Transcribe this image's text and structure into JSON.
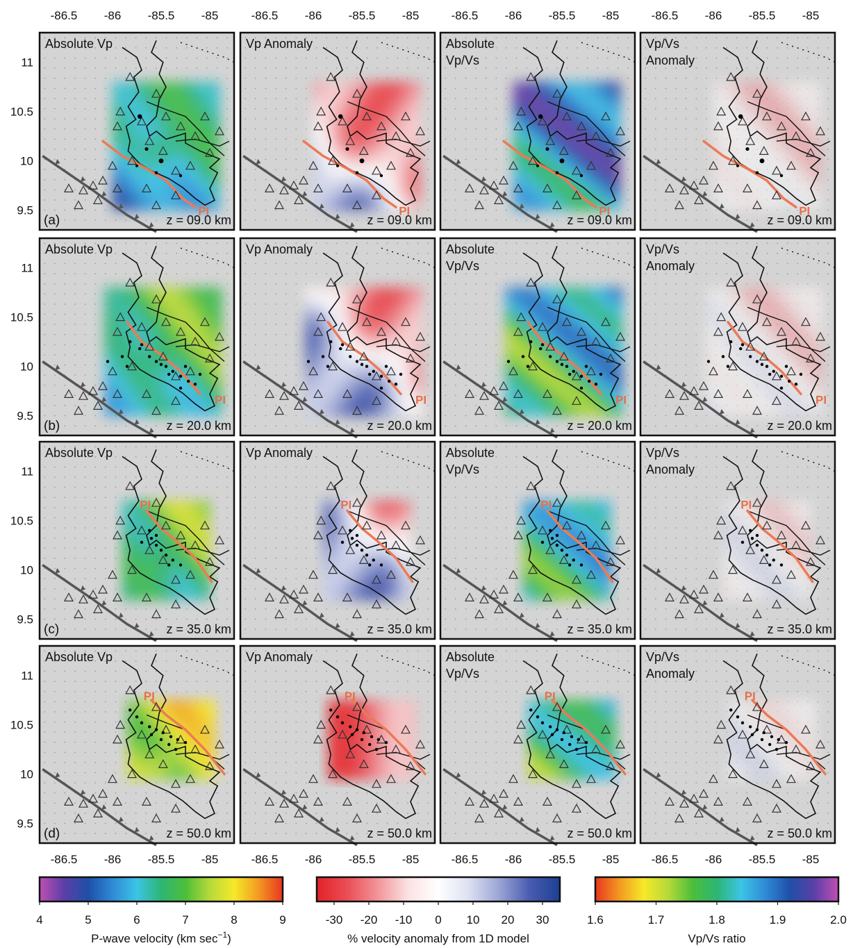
{
  "chart_data": {
    "type": "heatmap",
    "panel_titles": [
      [
        "Absolute Vp"
      ],
      [
        "Vp Anomaly"
      ],
      [
        "Absolute",
        "Vp/Vs"
      ],
      [
        "Vp/Vs",
        "Anomaly"
      ]
    ],
    "rows": [
      {
        "label": "(a)",
        "depth": "z = 09.0 km",
        "depth_km": 9.0
      },
      {
        "label": "(b)",
        "depth": "z = 20.0 km",
        "depth_km": 20.0
      },
      {
        "label": "(c)",
        "depth": "z = 35.0 km",
        "depth_km": 35.0
      },
      {
        "label": "(d)",
        "depth": "z = 50.0 km",
        "depth_km": 50.0
      }
    ],
    "fault_label": "PI",
    "x_ticks": [
      -86.5,
      -86,
      -85.5,
      -85
    ],
    "x_tick_labels": [
      "-86.5",
      "-86",
      "-85.5",
      "-85"
    ],
    "y_ticks": [
      11,
      10.5,
      10,
      9.5
    ],
    "y_tick_labels": [
      "11",
      "10.5",
      "10",
      "9.5"
    ],
    "xlim": [
      -86.75,
      -84.75
    ],
    "ylim": [
      9.3,
      11.3
    ],
    "colorbars": [
      {
        "title": "P-wave velocity (km sec",
        "title_sup": "−1",
        "title_end": ")",
        "ticks": [
          "4",
          "5",
          "6",
          "7",
          "8",
          "9"
        ],
        "range": [
          4,
          9
        ],
        "colors": [
          "#c04fb4",
          "#5b3fa6",
          "#1f4fa8",
          "#2f8ad6",
          "#3cc4e6",
          "#2db575",
          "#4cbf3a",
          "#b6d93a",
          "#f6e928",
          "#f39a22",
          "#e8361f"
        ]
      },
      {
        "title": "% velocity anomaly from 1D model",
        "ticks": [
          "-30",
          "-20",
          "-10",
          "0",
          "10",
          "20",
          "30"
        ],
        "range": [
          -35,
          35
        ],
        "colors": [
          "#e32227",
          "#ea4e55",
          "#f29499",
          "#fbe2e3",
          "#ffffff",
          "#dde0f2",
          "#9ba5d6",
          "#4a5cb0",
          "#1c3f93"
        ]
      },
      {
        "title": "Vp/Vs ratio",
        "ticks": [
          "1.6",
          "1.7",
          "1.8",
          "1.9",
          "2.0"
        ],
        "range": [
          1.6,
          2.0
        ],
        "colors": [
          "#e8361f",
          "#f39a22",
          "#f6e928",
          "#b6d93a",
          "#4cbf3a",
          "#2db575",
          "#3cc4e6",
          "#2f8ad6",
          "#1f4fa8",
          "#5b3fa6",
          "#c04fb4"
        ]
      }
    ]
  }
}
